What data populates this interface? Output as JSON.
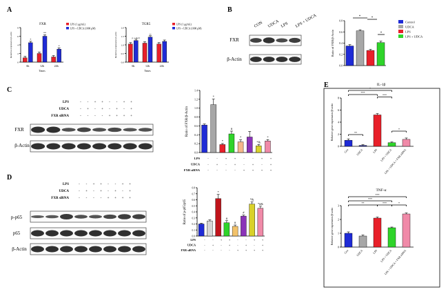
{
  "colors": {
    "red": "#e8202a",
    "blue": "#1f2bd6",
    "green": "#2fd42a",
    "darkblue": "#1a1f9a",
    "grey": "#a7a7a7",
    "orange": "#f5b78a",
    "purple": "#8a33b8",
    "olive": "#d9d12a",
    "pink": "#f08aa8",
    "darkred": "#c0141b",
    "lightgrey": "#d6d6d6",
    "peach": "#f2c26a"
  },
  "panels": {
    "A": "A",
    "B": "B",
    "C": "C",
    "D": "D",
    "E": "E"
  },
  "panelA": {
    "fxr": {
      "title": "FXR",
      "ylabel": "Relative expression β-actin",
      "xlabel": "Times",
      "legend": [
        "LPS (1 μg/mL)",
        "LPS + UDCA (1000 μM)"
      ],
      "categories": [
        "6h",
        "12h",
        "24h"
      ],
      "ylim": [
        0,
        8
      ],
      "series": [
        {
          "name": "LPS (1 μg/mL)",
          "values": [
            1.0,
            2.0,
            1.2
          ]
        },
        {
          "name": "LPS + UDCA (1000 μM)",
          "values": [
            4.5,
            6.0,
            3.0
          ]
        }
      ],
      "sig": [
        "*",
        "**",
        "*"
      ]
    },
    "tgr5": {
      "title": "TGR5",
      "ylabel": "Relative expression β-actin",
      "xlabel": "Times",
      "legend": [
        "LPS (1 μg/mL)",
        "LPS + UDCA (1000 μM)"
      ],
      "categories": [
        "6h",
        "12h",
        "24h"
      ],
      "ylim": [
        0,
        2.0
      ],
      "series": [
        {
          "name": "LPS (1 μg/mL)",
          "values": [
            1.05,
            1.1,
            1.05
          ]
        },
        {
          "name": "LPS + UDCA (1000 μM)",
          "values": [
            1.25,
            1.45,
            1.2
          ]
        }
      ],
      "sig": [
        "p = 0.21",
        "**",
        ""
      ]
    }
  },
  "panelB": {
    "lanes": [
      "CON",
      "UDCA",
      "LPS",
      "LPS + UDCA"
    ],
    "rows": [
      "FXR",
      "β-Actin"
    ],
    "legend": [
      "Control",
      "UDCA",
      "LPS",
      "LPS + UDCA"
    ],
    "ylabel": "Ratio of FXR/β-Actin",
    "chart_data": {
      "type": "bar",
      "categories": [
        "Control",
        "UDCA",
        "LPS",
        "LPS + UDCA"
      ],
      "values": [
        0.35,
        0.62,
        0.27,
        0.41
      ],
      "ylim": [
        0,
        0.8
      ],
      "yticks": [
        0.0,
        0.2,
        0.4,
        0.6,
        0.8
      ],
      "sig": [
        "",
        "*",
        "",
        "*"
      ]
    }
  },
  "panelC": {
    "conditions": [
      "LPS",
      "UDCA",
      "FXR siRNA"
    ],
    "rows": [
      "FXR",
      "β-Actin"
    ],
    "ylabel": "Ratio of FXR/β-Actin",
    "chart_data": {
      "type": "bar",
      "categories": [
        "1",
        "2",
        "3",
        "4",
        "5",
        "6",
        "7",
        "8"
      ],
      "values": [
        0.62,
        1.08,
        0.18,
        0.42,
        0.24,
        0.35,
        0.15,
        0.26
      ],
      "ylim": [
        0,
        1.4
      ],
      "yticks": [
        0.0,
        0.2,
        0.4,
        0.6,
        0.8,
        1.0,
        1.2,
        1.4
      ],
      "sig": [
        "",
        "*",
        "*",
        "#",
        "*",
        "",
        "*&",
        "*"
      ],
      "matrix": [
        [
          "-",
          "-",
          "+",
          "+",
          "-",
          "-",
          "+",
          "+"
        ],
        [
          "-",
          "+",
          "-",
          "+",
          "-",
          "+",
          "-",
          "+"
        ],
        [
          "-",
          "-",
          "-",
          "-",
          "+",
          "+",
          "+",
          "+"
        ]
      ]
    },
    "blot_matrix": [
      [
        "-",
        "-",
        "+",
        "+",
        "-",
        "-",
        "+",
        "+"
      ],
      [
        "-",
        "+",
        "-",
        "+",
        "-",
        "+",
        "-",
        "+"
      ],
      [
        "-",
        "-",
        "-",
        "-",
        "+",
        "+",
        "+",
        "+"
      ]
    ]
  },
  "panelD": {
    "conditions": [
      "LPS",
      "UDCA",
      "FXR siRNA"
    ],
    "rows": [
      "p-p65",
      "p65",
      "β-Actin"
    ],
    "ylabel": "Ratio of p-p65/p65",
    "chart_data": {
      "type": "bar",
      "categories": [
        "1",
        "2",
        "3",
        "4",
        "5",
        "6",
        "7",
        "8"
      ],
      "values": [
        0.2,
        0.25,
        0.62,
        0.22,
        0.16,
        0.33,
        0.53,
        0.46
      ],
      "ylim": [
        0,
        0.8
      ],
      "yticks": [
        0.0,
        0.1,
        0.2,
        0.3,
        0.4,
        0.5,
        0.6,
        0.7,
        0.8
      ],
      "sig": [
        "",
        "",
        "*",
        "#",
        "#",
        "#",
        "*&",
        "*#&"
      ],
      "matrix": [
        [
          "-",
          "-",
          "+",
          "+",
          "-",
          "-",
          "+",
          "+"
        ],
        [
          "-",
          "+",
          "-",
          "+",
          "-",
          "+",
          "-",
          "+"
        ],
        [
          "-",
          "-",
          "-",
          "-",
          "+",
          "+",
          "+",
          "+"
        ]
      ]
    },
    "blot_matrix": [
      [
        "-",
        "-",
        "+",
        "+",
        "-",
        "-",
        "+",
        "+"
      ],
      [
        "-",
        "+",
        "-",
        "+",
        "-",
        "+",
        "-",
        "+"
      ],
      [
        "-",
        "-",
        "-",
        "-",
        "+",
        "+",
        "+",
        "+"
      ]
    ]
  },
  "panelE": {
    "il1b": {
      "title": "IL-1β",
      "ylabel": "Relative gene expression/β-actin",
      "categories": [
        "Con",
        "UDCA",
        "LPS",
        "LPS + UDCA",
        "LPS + UDCA + FXR siRNA"
      ],
      "values": [
        1.0,
        0.15,
        5.2,
        0.6,
        1.15
      ],
      "ylim": [
        0,
        8
      ],
      "yticks": [
        0,
        2,
        4,
        6,
        8
      ],
      "brackets": [
        "*",
        "***",
        "***",
        "**",
        "*"
      ]
    },
    "tnfa": {
      "title": "TNF-α",
      "ylabel": "Relative gene expression/β-actin",
      "categories": [
        "Con",
        "UDCA",
        "LPS",
        "LPS + UDCA",
        "LPS + UDCA + FXR siRNA"
      ],
      "values": [
        1.0,
        0.8,
        2.1,
        1.4,
        2.4
      ],
      "ylim": [
        0,
        3
      ],
      "yticks": [
        0,
        1,
        2,
        3
      ],
      "brackets": [
        "***",
        "***",
        "**",
        "***",
        "*"
      ]
    }
  }
}
